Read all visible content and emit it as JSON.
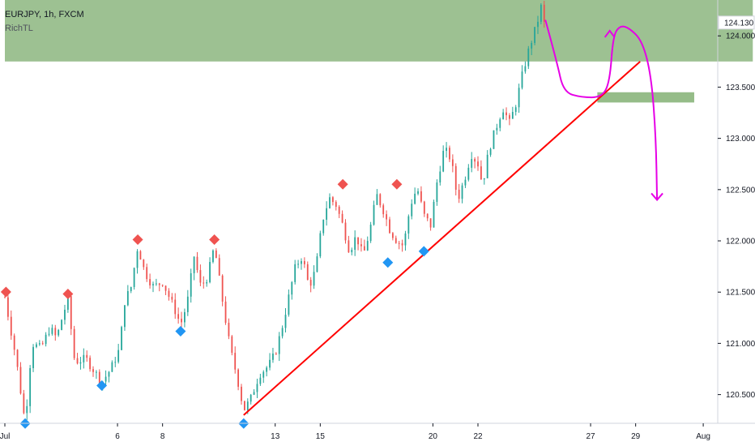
{
  "header": {
    "symbol_line": "EURJPY, 1h, FXCM",
    "indicator": "RichTL"
  },
  "chart_data": {
    "type": "candlestick",
    "symbol": "EURJPY",
    "timeframe": "1h",
    "source": "FXCM",
    "ylim": [
      120.22,
      124.35
    ],
    "xlim": [
      1.0,
      32.5
    ],
    "y_ticks": [
      "124.000",
      "123.500",
      "123.000",
      "122.500",
      "122.000",
      "121.500",
      "121.000",
      "120.500"
    ],
    "y_tick_values": [
      124.0,
      123.5,
      123.0,
      122.5,
      122.0,
      121.5,
      121.0,
      120.5
    ],
    "x_ticks": [
      {
        "label": "Jul",
        "day": 1
      },
      {
        "label": "6",
        "day": 6
      },
      {
        "label": "8",
        "day": 8
      },
      {
        "label": "13",
        "day": 13
      },
      {
        "label": "15",
        "day": 15
      },
      {
        "label": "20",
        "day": 20
      },
      {
        "label": "22",
        "day": 22
      },
      {
        "label": "27",
        "day": 27
      },
      {
        "label": "29",
        "day": 29
      },
      {
        "label": "Aug",
        "day": 32
      }
    ],
    "current_price": "124.130",
    "current_price_value": 124.13,
    "grid": false,
    "colors": {
      "up": "#26a69a",
      "down": "#ef5350",
      "trendline": "#ff0000",
      "zone": "#82b073",
      "projection": "#e600e6",
      "pivot_high": "#ef5350",
      "pivot_low": "#2196f3"
    },
    "path": [
      [
        1.0,
        121.45
      ],
      [
        1.5,
        120.85
      ],
      [
        1.9,
        120.22
      ],
      [
        2.2,
        121.0
      ],
      [
        2.6,
        120.95
      ],
      [
        3.0,
        121.15
      ],
      [
        3.3,
        121.05
      ],
      [
        3.6,
        121.3
      ],
      [
        3.8,
        121.42
      ],
      [
        4.1,
        120.82
      ],
      [
        4.6,
        120.85
      ],
      [
        5.0,
        120.72
      ],
      [
        5.3,
        120.62
      ],
      [
        5.7,
        120.75
      ],
      [
        6.1,
        120.95
      ],
      [
        6.3,
        121.4
      ],
      [
        6.6,
        121.55
      ],
      [
        6.9,
        121.95
      ],
      [
        7.2,
        121.7
      ],
      [
        7.6,
        121.55
      ],
      [
        8.0,
        121.6
      ],
      [
        8.3,
        121.45
      ],
      [
        8.6,
        121.3
      ],
      [
        8.8,
        121.18
      ],
      [
        9.1,
        121.4
      ],
      [
        9.4,
        121.85
      ],
      [
        9.7,
        121.55
      ],
      [
        10.0,
        121.65
      ],
      [
        10.3,
        121.95
      ],
      [
        10.6,
        121.5
      ],
      [
        11.0,
        120.95
      ],
      [
        11.3,
        120.68
      ],
      [
        11.6,
        120.35
      ],
      [
        11.9,
        120.45
      ],
      [
        12.3,
        120.7
      ],
      [
        12.7,
        120.78
      ],
      [
        13.0,
        120.9
      ],
      [
        13.3,
        121.15
      ],
      [
        13.6,
        121.45
      ],
      [
        13.9,
        121.75
      ],
      [
        14.2,
        121.85
      ],
      [
        14.5,
        121.55
      ],
      [
        14.8,
        121.72
      ],
      [
        15.1,
        122.2
      ],
      [
        15.4,
        122.42
      ],
      [
        15.7,
        122.35
      ],
      [
        16.0,
        122.15
      ],
      [
        16.3,
        121.9
      ],
      [
        16.6,
        122.05
      ],
      [
        16.9,
        121.85
      ],
      [
        17.2,
        122.1
      ],
      [
        17.5,
        122.45
      ],
      [
        17.8,
        122.3
      ],
      [
        18.1,
        122.1
      ],
      [
        18.4,
        122.0
      ],
      [
        18.7,
        121.95
      ],
      [
        19.0,
        122.35
      ],
      [
        19.3,
        122.52
      ],
      [
        19.6,
        122.25
      ],
      [
        19.9,
        122.15
      ],
      [
        20.2,
        122.6
      ],
      [
        20.5,
        122.9
      ],
      [
        20.8,
        122.8
      ],
      [
        21.1,
        122.4
      ],
      [
        21.4,
        122.6
      ],
      [
        21.7,
        122.85
      ],
      [
        22.0,
        122.75
      ],
      [
        22.2,
        122.55
      ],
      [
        22.5,
        122.9
      ],
      [
        22.8,
        123.1
      ],
      [
        23.1,
        123.3
      ],
      [
        23.4,
        123.15
      ],
      [
        23.7,
        123.35
      ],
      [
        24.0,
        123.65
      ],
      [
        24.3,
        123.9
      ],
      [
        24.6,
        124.1
      ],
      [
        24.8,
        124.28
      ],
      [
        25.0,
        124.05
      ]
    ],
    "pivot_highs": [
      {
        "day": 1.05,
        "value": 121.47
      },
      {
        "day": 3.8,
        "value": 121.45
      },
      {
        "day": 6.9,
        "value": 121.98
      },
      {
        "day": 10.3,
        "value": 121.98
      },
      {
        "day": 16.0,
        "value": 122.52
      },
      {
        "day": 18.4,
        "value": 122.52
      }
    ],
    "pivot_lows": [
      {
        "day": 1.9,
        "value": 120.25
      },
      {
        "day": 5.3,
        "value": 120.62
      },
      {
        "day": 8.8,
        "value": 121.15
      },
      {
        "day": 11.6,
        "value": 120.25
      },
      {
        "day": 18.0,
        "value": 121.82
      },
      {
        "day": 19.6,
        "value": 121.93
      }
    ],
    "trendline": {
      "from": {
        "day": 11.6,
        "value": 120.3
      },
      "to": {
        "day": 29.2,
        "value": 123.75
      }
    },
    "resistance_zone": {
      "from_day": 1.0,
      "to_day": 34.2,
      "low": 123.75,
      "high": 124.43
    },
    "support_box": {
      "from_day": 27.3,
      "to_day": 31.6,
      "low": 123.35,
      "high": 123.45
    },
    "projection_path": [
      [
        25.0,
        124.15
      ],
      [
        25.5,
        123.75
      ],
      [
        25.8,
        123.45
      ],
      [
        26.6,
        123.4
      ],
      [
        27.5,
        123.4
      ],
      [
        27.85,
        123.55
      ],
      [
        28.0,
        124.0
      ],
      [
        28.3,
        124.1
      ],
      [
        28.7,
        124.08
      ],
      [
        29.3,
        123.95
      ],
      [
        29.7,
        123.6
      ],
      [
        29.9,
        123.0
      ],
      [
        29.95,
        122.4
      ]
    ]
  }
}
